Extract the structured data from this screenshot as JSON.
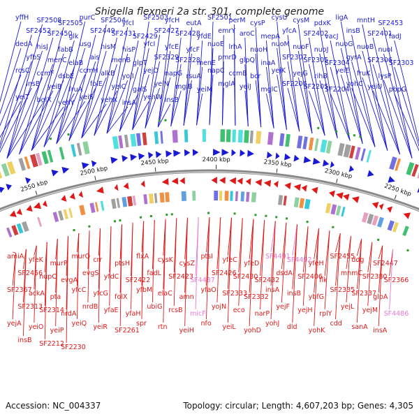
{
  "title": "Shigella flexneri 2a str. 301, complete genome",
  "footer": {
    "accession": "Accession: NC_004337",
    "stats": "Topology: circular; Length: 4,607,203 bp; Genes: 4,305"
  },
  "colors": {
    "forward_strand": "#1a1ad6",
    "reverse_strand": "#e01818",
    "rna_gene": "#e87ad6",
    "backbone": "#888888",
    "cog_marker": "#2e9a2e"
  },
  "ticks": [
    {
      "label": "2550 kbp",
      "kbp": 2550
    },
    {
      "label": "2500 kbp",
      "kbp": 2500
    },
    {
      "label": "2450 kbp",
      "kbp": 2450
    },
    {
      "label": "2400 kbp",
      "kbp": 2400
    },
    {
      "label": "2350 kbp",
      "kbp": 2350
    },
    {
      "label": "2300 kbp",
      "kbp": 2300
    },
    {
      "label": "2250 kbp",
      "kbp": 2250
    }
  ],
  "forward_genes": [
    "yffH",
    "SF2508",
    "SF2505",
    "purC",
    "SF2504",
    "yfcI",
    "SF2503",
    "yfcH",
    "eutA",
    "SF2501",
    "perM",
    "cysP",
    "cysU",
    "cysM",
    "pdxK",
    "ligA",
    "mntH",
    "SF2453",
    "SF2452",
    "SF2450",
    "glk",
    "SF2449",
    "SF2431",
    "SF2429",
    "SF2427",
    "SF2428",
    "yfdE",
    "emrY",
    "aroC",
    "mepA",
    "yfcA",
    "SF2402",
    "vacJ",
    "insB",
    "SF2401",
    "fadJ",
    "dedA",
    "hisJ",
    "fabB",
    "usg",
    "hisM",
    "hisP",
    "yfcI",
    "yfcE",
    "yfcF",
    "nuoE",
    "lrhA",
    "nuoH",
    "nuoM",
    "nuoF",
    "nuoJ",
    "nuoG",
    "nuoB",
    "nuoI",
    "yfbS",
    "menC",
    "elaB",
    "ais",
    "menB",
    "glpT",
    "SF2329",
    "SF2328",
    "menE",
    "pmrD",
    "glpQ",
    "inaA",
    "SF2307",
    "SF2305",
    "SF2304",
    "gyrA",
    "SF2306",
    "SF2303",
    "rcsC",
    "ccmF",
    "dsbE",
    "ccmH",
    "alkB",
    "yojI",
    "yejO",
    "napG",
    "rsuA",
    "napC",
    "ccmB",
    "bcr",
    "yejK",
    "yejG",
    "rihB",
    "yeiE",
    "fruK",
    "lysP",
    "insB",
    "yeiB",
    "fruA",
    "folE",
    "yeiC",
    "galS",
    "yeiN",
    "mglB",
    "yeiM",
    "mglA",
    "yeiJ",
    "mglC",
    "SF2206",
    "SF2205",
    "SF2204",
    "yohC",
    "yeiU",
    "pbpG",
    "yeiT",
    "bglX",
    "yehY",
    "yeiS",
    "yehX",
    "insA",
    "yehW",
    "insB"
  ],
  "reverse_genes": [
    "amiA",
    "yfeK",
    "murP",
    "murQ",
    "crr",
    "ptsH",
    "flxA",
    "cysK",
    "cysZ",
    "ptsI",
    "yfeC",
    "yfeD",
    "SF4491",
    "SF4492",
    "yfeH",
    "SF2455",
    "ddg",
    "SF2447",
    "SF2456",
    "nupC",
    "evgA",
    "evgS",
    "yfdC",
    "SF2422",
    "fadL",
    "SF2423",
    "SF4487",
    "SF2426",
    "SF2430",
    "SF2432",
    "dsdA",
    "SF2406",
    "flk",
    "mnmC",
    "SF2380",
    "SF2366",
    "SF2367",
    "ackA",
    "pta",
    "yfcC",
    "yfcG",
    "folX",
    "yfbM",
    "elaC",
    "amn",
    "yfaO",
    "SF2333",
    "SF2332",
    "insA",
    "insB",
    "ybfG",
    "SF2335",
    "SF2337",
    "glpA",
    "SF2313",
    "SF2314",
    "nrdA",
    "nrdB",
    "yfaE",
    "yfaH",
    "ubiG",
    "rcsB",
    "micF",
    "yojN",
    "eco",
    "narP",
    "yejF",
    "yejH",
    "rplY",
    "yejL",
    "yejM",
    "SF4486",
    "yejA",
    "yeiO",
    "yeiP",
    "yeiQ",
    "yeiR",
    "SF2261",
    "spr",
    "rtn",
    "yeiH",
    "nfo",
    "yeiL",
    "yohD",
    "yohJ",
    "dld",
    "yohK",
    "cdd",
    "sanA",
    "insA",
    "insB",
    "SF2212",
    "SF2230"
  ]
}
